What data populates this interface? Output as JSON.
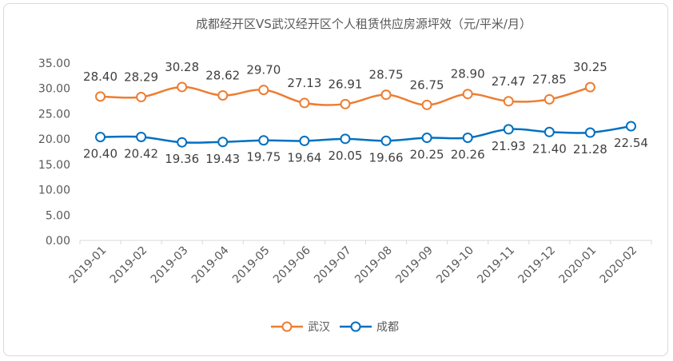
{
  "chart_data": {
    "type": "line",
    "title": "成都经开区VS武汉经开区个人租赁供应房源坪效（元/平米/月）",
    "categories": [
      "2019-01",
      "2019-02",
      "2019-03",
      "2019-04",
      "2019-05",
      "2019-06",
      "2019-07",
      "2019-08",
      "2019-09",
      "2019-10",
      "2019-11",
      "2019-12",
      "2020-01",
      "2020-02"
    ],
    "y_tick_labels": [
      "0.00",
      "5.00",
      "10.00",
      "15.00",
      "20.00",
      "25.00",
      "30.00",
      "35.00"
    ],
    "ylim": [
      0,
      35
    ],
    "grid": false,
    "legend_position": "bottom-center",
    "series": [
      {
        "name": "武汉",
        "color": "#ED7D31",
        "values": [
          28.4,
          28.29,
          30.28,
          28.62,
          29.7,
          27.13,
          26.91,
          28.75,
          26.75,
          28.9,
          27.47,
          27.85,
          30.25,
          null
        ],
        "labels": [
          "28.40",
          "28.29",
          "30.28",
          "28.62",
          "29.70",
          "27.13",
          "26.91",
          "28.75",
          "26.75",
          "28.90",
          "27.47",
          "27.85",
          "30.25",
          ""
        ]
      },
      {
        "name": "成都",
        "color": "#0070C0",
        "values": [
          20.4,
          20.42,
          19.36,
          19.43,
          19.75,
          19.64,
          20.05,
          19.66,
          20.25,
          20.26,
          21.93,
          21.4,
          21.28,
          22.54
        ],
        "labels": [
          "20.40",
          "20.42",
          "19.36",
          "19.43",
          "19.75",
          "19.64",
          "20.05",
          "19.66",
          "20.25",
          "20.26",
          "21.93",
          "21.40",
          "21.28",
          "22.54"
        ]
      }
    ]
  }
}
